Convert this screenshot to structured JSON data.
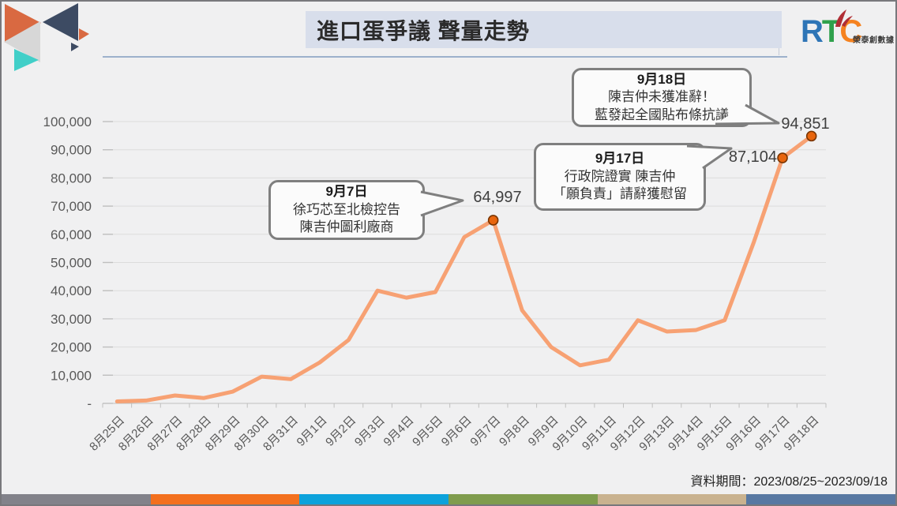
{
  "slide": {
    "title": "進口蛋爭議 聲量走勢",
    "footer": "資料期間：2023/08/25~2023/09/18",
    "brand": {
      "letters": [
        "R",
        "T",
        "C"
      ],
      "letter_colors": [
        "#2E75B6",
        "#2FA14C",
        "#F58220"
      ],
      "flame_color": "#B02E35",
      "name": "榮泰創數據"
    },
    "stripe_colors": [
      "#82828A",
      "#F3701E",
      "#0CA2DB",
      "#7F9C4D",
      "#C9B28F",
      "#5878A2"
    ]
  },
  "chart_data": {
    "type": "line",
    "title": "進口蛋爭議 聲量走勢",
    "categories": [
      "8月25日",
      "8月26日",
      "8月27日",
      "8月28日",
      "8月29日",
      "8月30日",
      "8月31日",
      "9月1日",
      "9月2日",
      "9月3日",
      "9月4日",
      "9月5日",
      "9月6日",
      "9月7日",
      "9月8日",
      "9月9日",
      "9月10日",
      "9月11日",
      "9月12日",
      "9月13日",
      "9月14日",
      "9月15日",
      "9月16日",
      "9月17日",
      "9月18日"
    ],
    "values": [
      700,
      1000,
      2800,
      1900,
      4200,
      9500,
      8600,
      14500,
      22500,
      40000,
      37500,
      39500,
      59000,
      64997,
      33000,
      20000,
      13500,
      15500,
      29500,
      25500,
      26000,
      29500,
      57000,
      87104,
      94851
    ],
    "ylim": [
      0,
      100000
    ],
    "y_ticks": [
      "-",
      "10,000",
      "20,000",
      "30,000",
      "40,000",
      "50,000",
      "60,000",
      "70,000",
      "80,000",
      "90,000",
      "100,000"
    ],
    "grid": true,
    "legend": "none",
    "line_color": "#F7A173",
    "marker_color": "#E8650D",
    "marker_edge_color": "#7A3500",
    "labeled_points": [
      {
        "category": "9月7日",
        "value": 64997,
        "label": "64,997"
      },
      {
        "category": "9月17日",
        "value": 87104,
        "label": "87,104"
      },
      {
        "category": "9月18日",
        "value": 94851,
        "label": "94,851"
      }
    ],
    "annotations": [
      {
        "title": "9月7日",
        "lines": [
          "徐巧芯至北檢控告",
          "陳吉仲圖利廠商"
        ]
      },
      {
        "title": "9月17日",
        "lines": [
          "行政院證實 陳吉仲",
          "「願負責」請辭獲慰留"
        ]
      },
      {
        "title": "9月18日",
        "lines": [
          "陳吉仲未獲准辭！",
          "藍發起全國貼布條抗議"
        ]
      }
    ]
  }
}
